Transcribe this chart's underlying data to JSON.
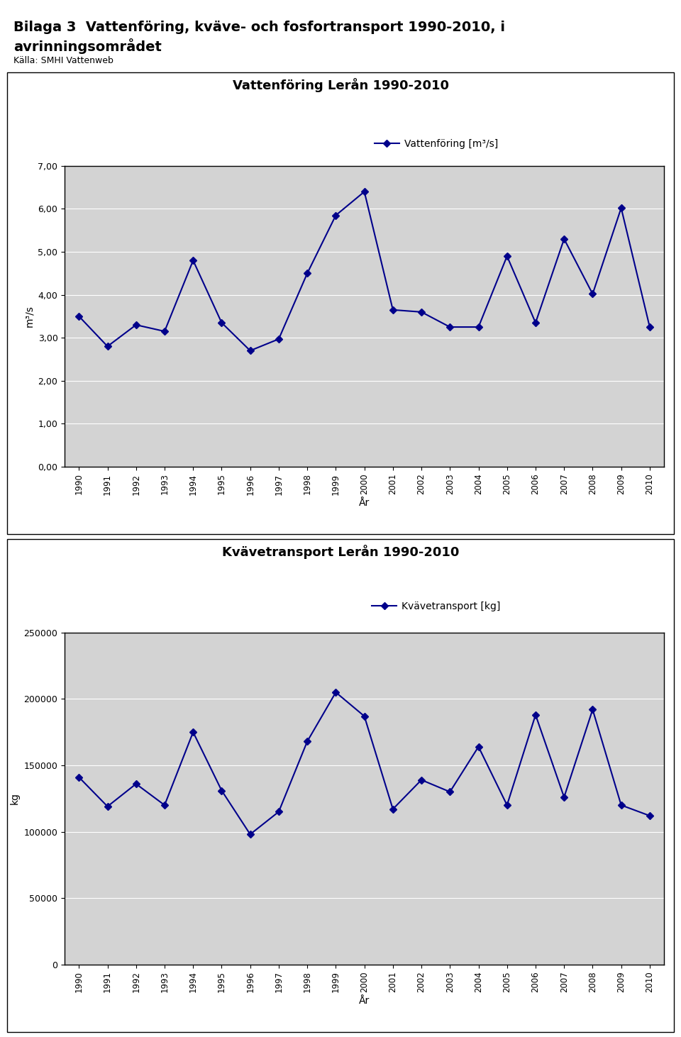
{
  "header_line1": "Bilaga 3  Vattenföring, kväve- och fosfortransport 1990-2010, i",
  "header_line2": "avrinningsområdet",
  "header_source": "Källa: SMHI Vattenweb",
  "chart1_title": "Vattenföring Lerån 1990-2010",
  "chart1_legend": "Vattenföring [m³/s]",
  "chart1_ylabel": "m³/s",
  "chart1_xlabel": "År",
  "chart1_years": [
    1990,
    1991,
    1992,
    1993,
    1994,
    1995,
    1996,
    1997,
    1998,
    1999,
    2000,
    2001,
    2002,
    2003,
    2004,
    2005,
    2006,
    2007,
    2008,
    2009,
    2010
  ],
  "chart1_values": [
    3.5,
    2.8,
    3.3,
    3.15,
    4.8,
    3.35,
    2.7,
    2.97,
    4.5,
    5.85,
    6.4,
    3.65,
    3.6,
    3.25,
    3.25,
    4.9,
    3.35,
    5.3,
    4.02,
    6.02,
    3.25
  ],
  "chart1_ylim": [
    0.0,
    7.0
  ],
  "chart1_yticks": [
    0.0,
    1.0,
    2.0,
    3.0,
    4.0,
    5.0,
    6.0,
    7.0
  ],
  "chart1_yticklabels": [
    "0,00",
    "1,00",
    "2,00",
    "3,00",
    "4,00",
    "5,00",
    "6,00",
    "7,00"
  ],
  "chart2_title": "Kvävetransport Lerån 1990-2010",
  "chart2_legend": "Kvävetransport [kg]",
  "chart2_ylabel": "kg",
  "chart2_xlabel": "År",
  "chart2_years": [
    1990,
    1991,
    1992,
    1993,
    1994,
    1995,
    1996,
    1997,
    1998,
    1999,
    2000,
    2001,
    2002,
    2003,
    2004,
    2005,
    2006,
    2007,
    2008,
    2009,
    2010
  ],
  "chart2_values": [
    141000,
    119000,
    136000,
    120000,
    175000,
    131000,
    98000,
    115000,
    168000,
    205000,
    187000,
    117000,
    139000,
    130000,
    164000,
    120000,
    188000,
    126000,
    192000,
    120000,
    112000
  ],
  "chart2_ylim": [
    0,
    250000
  ],
  "chart2_yticks": [
    0,
    50000,
    100000,
    150000,
    200000,
    250000
  ],
  "chart2_yticklabels": [
    "0",
    "50000",
    "100000",
    "150000",
    "200000",
    "250000"
  ],
  "line_color": "#00008B",
  "plot_bg_color": "#D3D3D3",
  "outer_bg_color": "#FFFFFF",
  "border_color": "#000000",
  "grid_color": "#FFFFFF"
}
